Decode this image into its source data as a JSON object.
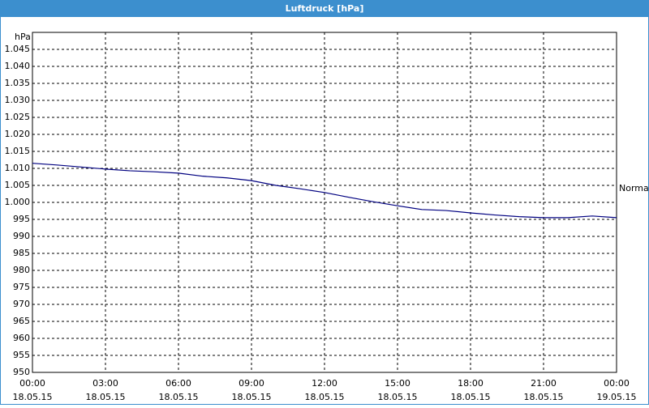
{
  "chart_data": {
    "type": "line",
    "title": "Luftdruck [hPa]",
    "y_unit": "hPa",
    "annotation": "Normal",
    "x": [
      0,
      1,
      2,
      3,
      4,
      5,
      6,
      7,
      8,
      9,
      10,
      11,
      12,
      13,
      14,
      15,
      16,
      17,
      18,
      19,
      20,
      21,
      22,
      23,
      24
    ],
    "series": [
      {
        "name": "Luftdruck",
        "color": "#000080",
        "values": [
          1011.5,
          1011,
          1010.4,
          1009.8,
          1009.3,
          1009,
          1008.6,
          1007.7,
          1007.2,
          1006.4,
          1005,
          1004,
          1002.9,
          1001.5,
          1000.2,
          999,
          997.9,
          997.6,
          996.9,
          996.3,
          995.8,
          995.5,
          995.5,
          996,
          995.5
        ]
      }
    ],
    "xlim": [
      0,
      24
    ],
    "xticks": [
      {
        "value": 0,
        "label": "00:00"
      },
      {
        "value": 3,
        "label": "03:00"
      },
      {
        "value": 6,
        "label": "06:00"
      },
      {
        "value": 9,
        "label": "09:00"
      },
      {
        "value": 12,
        "label": "12:00"
      },
      {
        "value": 15,
        "label": "15:00"
      },
      {
        "value": 18,
        "label": "18:00"
      },
      {
        "value": 21,
        "label": "21:00"
      },
      {
        "value": 24,
        "label": "00:00"
      }
    ],
    "xtick_dates": [
      "18.05.15",
      "18.05.15",
      "18.05.15",
      "18.05.15",
      "18.05.15",
      "18.05.15",
      "18.05.15",
      "18.05.15",
      "19.05.15"
    ],
    "ylim": [
      950,
      1050
    ],
    "yticks": [
      950,
      955,
      960,
      965,
      970,
      975,
      980,
      985,
      990,
      995,
      {
        "value": 1000,
        "label": "1.000"
      },
      {
        "value": 1005,
        "label": "1.005"
      },
      {
        "value": 1010,
        "label": "1.010"
      },
      {
        "value": 1015,
        "label": "1.015"
      },
      {
        "value": 1020,
        "label": "1.020"
      },
      {
        "value": 1025,
        "label": "1.025"
      },
      {
        "value": 1030,
        "label": "1.030"
      },
      {
        "value": 1035,
        "label": "1.035"
      },
      {
        "value": 1040,
        "label": "1.040"
      },
      {
        "value": 1045,
        "label": "1.045"
      }
    ],
    "grid": true
  }
}
